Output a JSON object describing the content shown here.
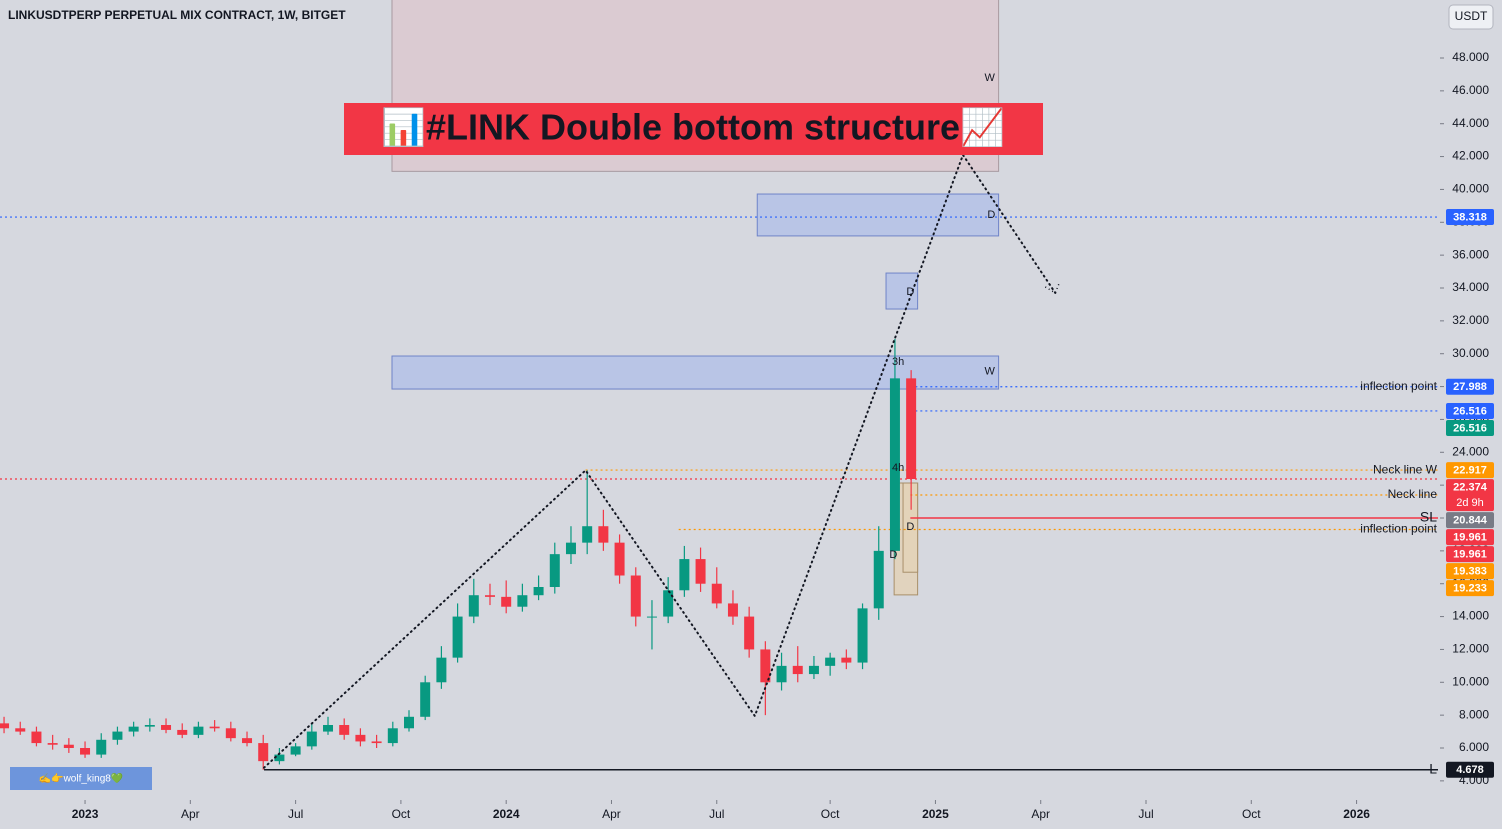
{
  "chart_data": {
    "type": "candlestick",
    "title": "LINKUSDTPERP PERPETUAL MIX CONTRACT, 1W, BITGET",
    "currency": "USDT",
    "banner": "📊#LINK Double bottom structure📈",
    "watermark": "✍️👉wolf_king8💚",
    "up_color": "#089981",
    "down_color": "#f23645",
    "x": [
      -10,
      -8,
      -6,
      -4,
      -2,
      0,
      2,
      4,
      6,
      8,
      10,
      12,
      14,
      16,
      18,
      20,
      22,
      24,
      26,
      28,
      30,
      32,
      34,
      36,
      38,
      40,
      42,
      44,
      46,
      48,
      50,
      52,
      54,
      56,
      58,
      60,
      62,
      64,
      66,
      68,
      70,
      72,
      74,
      76,
      78,
      80,
      82,
      84,
      86,
      88,
      90,
      92,
      94,
      96,
      98,
      100,
      102
    ],
    "open": [
      7.5,
      7.2,
      7.0,
      6.3,
      6.2,
      6.0,
      5.6,
      6.5,
      7.0,
      7.3,
      7.4,
      7.1,
      6.8,
      7.3,
      7.2,
      6.6,
      6.3,
      5.2,
      5.6,
      6.1,
      7.0,
      7.4,
      6.8,
      6.4,
      6.3,
      7.2,
      7.9,
      10.0,
      11.5,
      14.0,
      15.3,
      15.2,
      14.6,
      15.3,
      15.8,
      17.8,
      18.5,
      19.5,
      18.5,
      16.5,
      14.0,
      14.0,
      15.6,
      17.5,
      16.0,
      14.8,
      14.0,
      12.0,
      10.0,
      11.0,
      10.5,
      11.0,
      11.5,
      11.2,
      14.5,
      18.0,
      28.5
    ],
    "high": [
      7.9,
      7.6,
      7.3,
      6.8,
      6.6,
      6.4,
      6.9,
      7.3,
      7.6,
      7.8,
      7.8,
      7.5,
      7.6,
      7.7,
      7.6,
      7.0,
      6.8,
      6.0,
      6.3,
      7.5,
      7.9,
      7.8,
      7.2,
      6.8,
      7.6,
      8.3,
      10.4,
      12.2,
      14.8,
      16.3,
      16.0,
      16.2,
      16.0,
      16.5,
      18.5,
      19.5,
      22.9,
      20.5,
      19.0,
      17.0,
      15.0,
      16.4,
      18.3,
      18.2,
      17.0,
      15.6,
      14.6,
      12.5,
      11.8,
      12.2,
      11.6,
      11.8,
      12.0,
      14.8,
      19.5,
      30.9,
      29.0
    ],
    "low": [
      6.9,
      6.8,
      6.1,
      5.9,
      5.7,
      5.4,
      5.4,
      6.2,
      6.7,
      7.0,
      6.9,
      6.6,
      6.6,
      7.0,
      6.4,
      6.1,
      4.678,
      5.0,
      5.5,
      5.9,
      6.8,
      6.5,
      6.1,
      6.0,
      6.1,
      7.0,
      7.7,
      9.6,
      11.2,
      13.6,
      14.7,
      14.2,
      14.3,
      15.0,
      15.4,
      17.2,
      17.8,
      18.0,
      16.0,
      13.4,
      12.0,
      13.6,
      15.2,
      15.5,
      14.5,
      13.5,
      11.5,
      8.0,
      9.5,
      10.0,
      10.2,
      10.4,
      10.8,
      10.8,
      13.8,
      17.5,
      20.5
    ],
    "close": [
      7.2,
      7.0,
      6.3,
      6.2,
      6.0,
      5.6,
      6.5,
      7.0,
      7.3,
      7.4,
      7.1,
      6.8,
      7.3,
      7.2,
      6.6,
      6.3,
      5.2,
      5.6,
      6.1,
      7.0,
      7.4,
      6.8,
      6.4,
      6.3,
      7.2,
      7.9,
      10.0,
      11.5,
      14.0,
      15.3,
      15.2,
      14.6,
      15.3,
      15.8,
      17.8,
      18.5,
      19.5,
      18.5,
      16.5,
      14.0,
      14.0,
      15.6,
      17.5,
      16.0,
      14.8,
      14.0,
      12.0,
      10.0,
      11.0,
      10.5,
      11.0,
      11.5,
      11.2,
      14.5,
      18.0,
      28.5,
      22.374
    ],
    "xlim": [
      -10.5,
      167.3
    ],
    "xticks": [
      {
        "value": 0,
        "label": "2023"
      },
      {
        "value": 13,
        "label": "Apr"
      },
      {
        "value": 26,
        "label": "Jul"
      },
      {
        "value": 39,
        "label": "Oct"
      },
      {
        "value": 52,
        "label": "2024"
      },
      {
        "value": 65,
        "label": "Apr"
      },
      {
        "value": 78,
        "label": "Jul"
      },
      {
        "value": 92,
        "label": "Oct"
      },
      {
        "value": 105,
        "label": "2025"
      },
      {
        "value": 118,
        "label": "Apr"
      },
      {
        "value": 131,
        "label": "Jul"
      },
      {
        "value": 144,
        "label": "Oct"
      },
      {
        "value": 157,
        "label": "2026"
      }
    ],
    "ylim": [
      1.07,
      51.53
    ],
    "yticks": [
      {
        "value": 4,
        "label": "4.000"
      },
      {
        "value": 6,
        "label": "6.000"
      },
      {
        "value": 8,
        "label": "8.000"
      },
      {
        "value": 10,
        "label": "10.000"
      },
      {
        "value": 12,
        "label": "12.000"
      },
      {
        "value": 14,
        "label": "14.000"
      },
      {
        "value": 16,
        "label": "16.000"
      },
      {
        "value": 18,
        "label": "18.000"
      },
      {
        "value": 20,
        "label": "20.000"
      },
      {
        "value": 22,
        "label": "22.000"
      },
      {
        "value": 24,
        "label": "24.000"
      },
      {
        "value": 26,
        "label": "26.000"
      },
      {
        "value": 28,
        "label": "28.000"
      },
      {
        "value": 30,
        "label": "30.000"
      },
      {
        "value": 32,
        "label": "32.000"
      },
      {
        "value": 34,
        "label": "34.000"
      },
      {
        "value": 36,
        "label": "36.000"
      },
      {
        "value": 38,
        "label": "38.000"
      },
      {
        "value": 40,
        "label": "40.000"
      },
      {
        "value": 42,
        "label": "42.000"
      },
      {
        "value": 44,
        "label": "44.000"
      },
      {
        "value": 46,
        "label": "46.000"
      },
      {
        "value": 48,
        "label": "48.000"
      }
    ],
    "zones": [
      {
        "x": [
          37.9,
          112.8
        ],
        "y": [
          41.1,
          51.6
        ],
        "fill": "#dcc9d0",
        "stroke": "#a89aa0"
      },
      {
        "x": [
          83.0,
          112.8
        ],
        "y": [
          37.17,
          39.72
        ],
        "fill": "#b4c2e8",
        "stroke": "#6f84c8"
      },
      {
        "x": [
          98.9,
          102.8
        ],
        "y": [
          32.72,
          34.91
        ],
        "fill": "#b4c2e8",
        "stroke": "#6f84c8"
      },
      {
        "x": [
          37.9,
          112.8
        ],
        "y": [
          27.85,
          29.86
        ],
        "fill": "#b4c2e8",
        "stroke": "#6f84c8"
      },
      {
        "x": [
          99.9,
          102.8
        ],
        "y": [
          15.32,
          22.13
        ],
        "fill": "#e3d2b8",
        "stroke": "#a88f6a"
      },
      {
        "x": [
          101.0,
          102.8
        ],
        "y": [
          16.7,
          22.13
        ],
        "fill": "#e3d2b8",
        "stroke": "#a88f6a"
      }
    ],
    "pattern": {
      "x": [
        22.1,
        61.8,
        82.7,
        108.4,
        119.8
      ],
      "y": [
        4.8,
        22.9,
        7.95,
        42.1,
        33.7
      ]
    },
    "levels": [
      {
        "value": 38.318,
        "from": -10.5,
        "color": "#2962ff",
        "style": "dotted"
      },
      {
        "value": 27.988,
        "from": 101.9,
        "color": "#2962ff",
        "style": "dotted",
        "label": "inflection point"
      },
      {
        "value": 26.516,
        "from": 101.9,
        "color": "#2962ff",
        "style": "dotted"
      },
      {
        "value": 22.374,
        "from": -10.5,
        "color": "#f23645",
        "style": "dotted"
      },
      {
        "value": 22.917,
        "from": 61.8,
        "color": "#ff9800",
        "style": "dotted",
        "label": "Neck line W"
      },
      {
        "value": 21.4,
        "from": 101.9,
        "color": "#ff9800",
        "style": "dotted",
        "label": "Neck line"
      },
      {
        "value": 20.0,
        "from": 101.9,
        "color": "#f23645",
        "style": "solid",
        "label": "SL"
      },
      {
        "value": 19.3,
        "from": 73.3,
        "color": "#ff9800",
        "style": "dotted",
        "label": "inflection point"
      },
      {
        "value": 4.678,
        "from": 22.1,
        "color": "#131722",
        "style": "solid",
        "label": "L"
      }
    ],
    "price_tags": [
      {
        "value": 38.318,
        "color": "#2962ff"
      },
      {
        "value": 27.988,
        "color": "#2962ff"
      },
      {
        "value": 26.516,
        "color": "#2962ff"
      },
      {
        "value": 26.516,
        "color": "#089981"
      },
      {
        "value": 22.917,
        "color": "#ff9800"
      },
      {
        "value": 22.374,
        "color": "#f23645",
        "sub": "2d 9h"
      },
      {
        "value": 20.844,
        "color": "#787b86"
      },
      {
        "value": 19.961,
        "color": "#f23645"
      },
      {
        "value": 19.961,
        "color": "#f23645"
      },
      {
        "value": 19.383,
        "color": "#ff9800"
      },
      {
        "value": 19.233,
        "color": "#ff9800"
      },
      {
        "value": 4.678,
        "color": "#131722"
      }
    ],
    "notes": [
      {
        "x": 111.7,
        "y": 46.78,
        "text": "W"
      },
      {
        "x": 111.7,
        "y": 28.9,
        "text": "W"
      },
      {
        "x": 111.9,
        "y": 38.45,
        "text": "D"
      },
      {
        "x": 101.9,
        "y": 33.76,
        "text": "D"
      },
      {
        "x": 101.9,
        "y": 19.45,
        "text": "D"
      },
      {
        "x": 99.8,
        "y": 17.75,
        "text": "D"
      },
      {
        "x": 100.4,
        "y": 29.5,
        "text": "3h"
      },
      {
        "x": 100.4,
        "y": 23.05,
        "text": "4h"
      }
    ]
  }
}
